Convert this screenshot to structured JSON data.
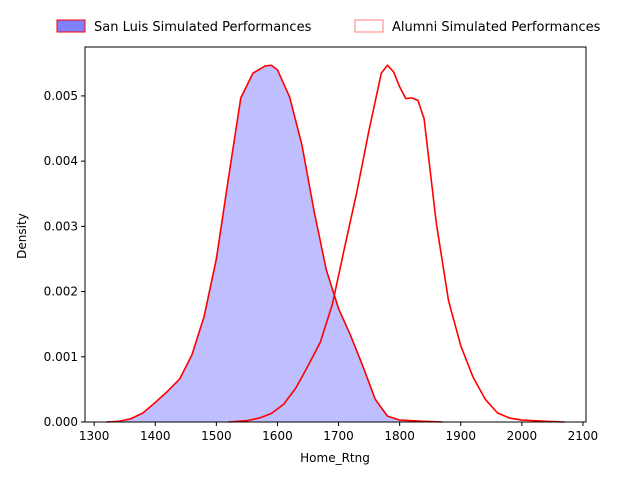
{
  "chart_data": {
    "type": "area",
    "xlabel": "Home_Rtng",
    "ylabel": "Density",
    "xlim": [
      1285,
      2105
    ],
    "ylim": [
      0,
      0.00575
    ],
    "x_ticks": [
      1300,
      1400,
      1500,
      1600,
      1700,
      1800,
      1900,
      2000,
      2100
    ],
    "y_ticks": [
      0.0,
      0.001,
      0.002,
      0.003,
      0.004,
      0.005
    ],
    "y_tick_labels": [
      "0.000",
      "0.001",
      "0.002",
      "0.003",
      "0.004",
      "0.005"
    ],
    "grid": false,
    "legend_position": "top",
    "series": [
      {
        "name": "San Luis Simulated Performances",
        "fill_color": "#8080ff",
        "fill_opacity": 0.5,
        "line_color": "#ff0000",
        "x": [
          1320,
          1340,
          1360,
          1380,
          1400,
          1420,
          1440,
          1460,
          1480,
          1500,
          1520,
          1540,
          1560,
          1580,
          1590,
          1600,
          1620,
          1640,
          1660,
          1680,
          1700,
          1720,
          1740,
          1760,
          1780,
          1800,
          1820,
          1840,
          1870
        ],
        "y": [
          0.0,
          1e-05,
          5e-05,
          0.00014,
          0.0003,
          0.00047,
          0.00066,
          0.00103,
          0.00162,
          0.0025,
          0.00375,
          0.00497,
          0.00535,
          0.00546,
          0.00547,
          0.0054,
          0.00498,
          0.00425,
          0.00323,
          0.00233,
          0.00174,
          0.00132,
          0.00085,
          0.00035,
          9e-05,
          3e-05,
          2e-05,
          1e-05,
          0.0
        ]
      },
      {
        "name": "Alumni Simulated Performances",
        "fill_color": "#ffffff",
        "line_color": "#ff0000",
        "legend_edge_color": "#ff8080",
        "x": [
          1520,
          1550,
          1570,
          1590,
          1610,
          1630,
          1650,
          1670,
          1690,
          1710,
          1730,
          1750,
          1770,
          1780,
          1790,
          1800,
          1810,
          1820,
          1830,
          1840,
          1860,
          1880,
          1900,
          1920,
          1940,
          1960,
          1980,
          2000,
          2020,
          2040,
          2070
        ],
        "y": [
          0.0,
          2e-05,
          6e-05,
          0.00013,
          0.00027,
          0.00052,
          0.00086,
          0.00122,
          0.00181,
          0.00268,
          0.00353,
          0.00448,
          0.00535,
          0.00547,
          0.00537,
          0.00514,
          0.00496,
          0.00497,
          0.00493,
          0.00465,
          0.00305,
          0.00186,
          0.00117,
          0.00069,
          0.00035,
          0.00014,
          6e-05,
          3e-05,
          2e-05,
          1e-05,
          0.0
        ]
      }
    ]
  }
}
